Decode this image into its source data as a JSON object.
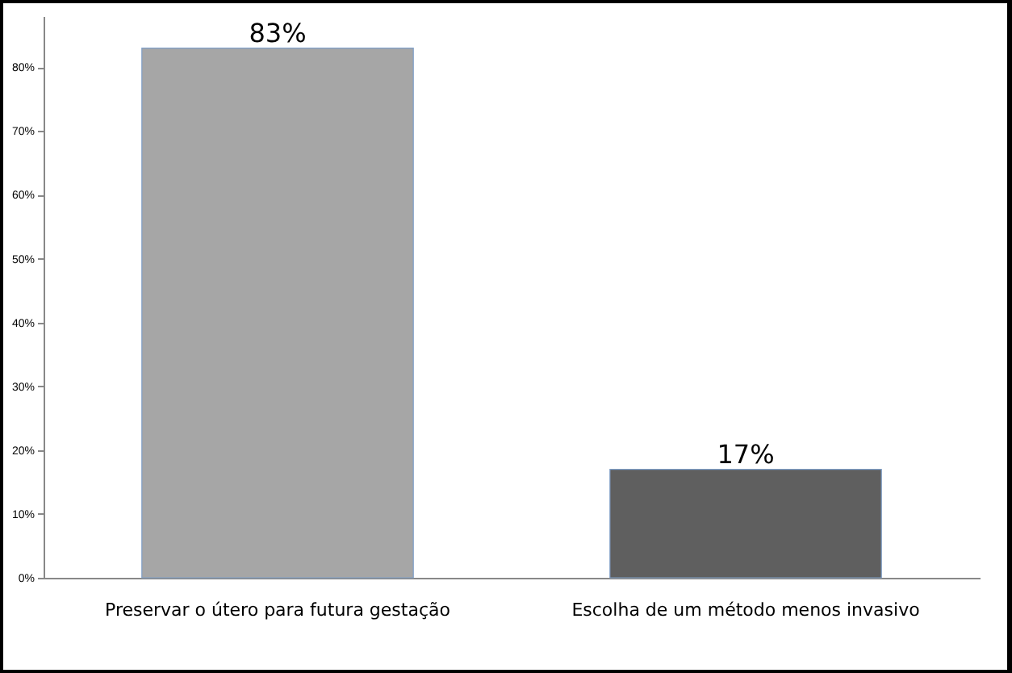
{
  "chart_data": {
    "type": "bar",
    "categories": [
      "Preservar o útero para futura gestação",
      "Escolha de um método menos invasivo"
    ],
    "values": [
      83,
      17
    ],
    "colors": [
      "#a6a6a6",
      "#5f5f5f"
    ],
    "value_labels": [
      "83%",
      "17%"
    ],
    "ylim": [
      0,
      88
    ],
    "yticks": [
      {
        "value": 0,
        "label": "0%"
      },
      {
        "value": 10,
        "label": "10%"
      },
      {
        "value": 20,
        "label": "20%"
      },
      {
        "value": 30,
        "label": "30%"
      },
      {
        "value": 40,
        "label": "40%"
      },
      {
        "value": 50,
        "label": "50%"
      },
      {
        "value": 60,
        "label": "60%"
      },
      {
        "value": 70,
        "label": "70%"
      },
      {
        "value": 80,
        "label": "80%"
      }
    ],
    "grid": false,
    "legend": false
  }
}
